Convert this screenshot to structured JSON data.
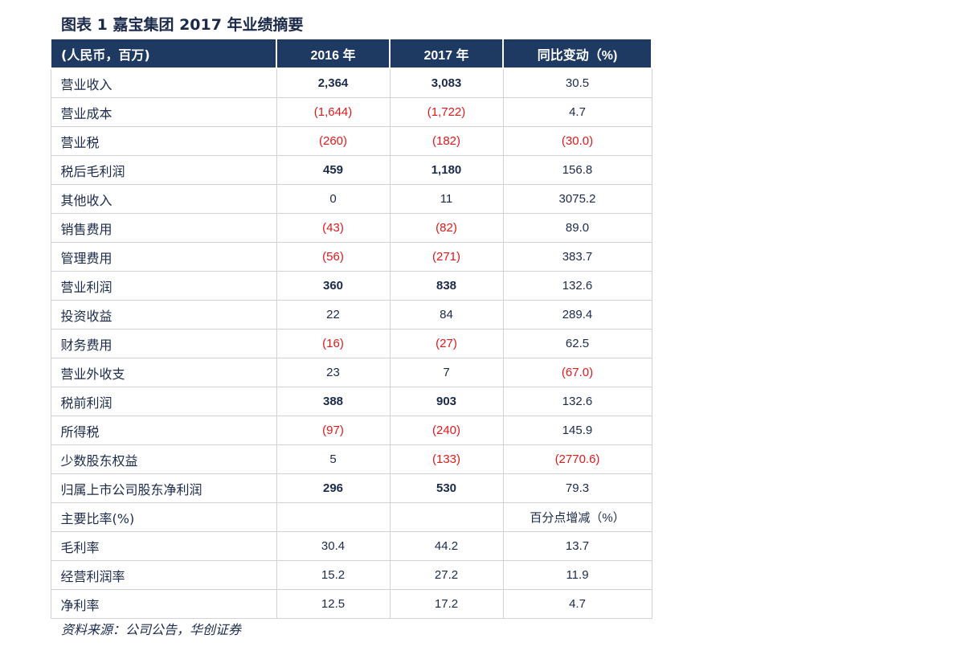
{
  "title": "图表 1 嘉宝集团 2017 年业绩摘要",
  "header": [
    "(人民币，百万)",
    "2016 年",
    "2017 年",
    "同比变动（%)"
  ],
  "rows": [
    {
      "label": "营业收入",
      "y2016": "2,364",
      "y2017": "3,083",
      "change": "30.5",
      "neg2016": false,
      "neg2017": false,
      "negChange": false,
      "bold": true
    },
    {
      "label": "营业成本",
      "y2016": "(1,644)",
      "y2017": "(1,722)",
      "change": "4.7",
      "neg2016": true,
      "neg2017": true,
      "negChange": false,
      "bold": false
    },
    {
      "label": "营业税",
      "y2016": "(260)",
      "y2017": "(182)",
      "change": "(30.0)",
      "neg2016": true,
      "neg2017": true,
      "negChange": true,
      "bold": false
    },
    {
      "label": "税后毛利润",
      "y2016": "459",
      "y2017": "1,180",
      "change": "156.8",
      "neg2016": false,
      "neg2017": false,
      "negChange": false,
      "bold": true
    },
    {
      "label": "其他收入",
      "y2016": "0",
      "y2017": "11",
      "change": "3075.2",
      "neg2016": false,
      "neg2017": false,
      "negChange": false,
      "bold": false
    },
    {
      "label": "销售费用",
      "y2016": "(43)",
      "y2017": "(82)",
      "change": "89.0",
      "neg2016": true,
      "neg2017": true,
      "negChange": false,
      "bold": false
    },
    {
      "label": "管理费用",
      "y2016": "(56)",
      "y2017": "(271)",
      "change": "383.7",
      "neg2016": true,
      "neg2017": true,
      "negChange": false,
      "bold": false
    },
    {
      "label": "营业利润",
      "y2016": "360",
      "y2017": "838",
      "change": "132.6",
      "neg2016": false,
      "neg2017": false,
      "negChange": false,
      "bold": true
    },
    {
      "label": "投资收益",
      "y2016": "22",
      "y2017": "84",
      "change": "289.4",
      "neg2016": false,
      "neg2017": false,
      "negChange": false,
      "bold": false
    },
    {
      "label": "财务费用",
      "y2016": "(16)",
      "y2017": "(27)",
      "change": "62.5",
      "neg2016": true,
      "neg2017": true,
      "negChange": false,
      "bold": false
    },
    {
      "label": "营业外收支",
      "y2016": "23",
      "y2017": "7",
      "change": "(67.0)",
      "neg2016": false,
      "neg2017": false,
      "negChange": true,
      "bold": false
    },
    {
      "label": "税前利润",
      "y2016": "388",
      "y2017": "903",
      "change": "132.6",
      "neg2016": false,
      "neg2017": false,
      "negChange": false,
      "bold": true
    },
    {
      "label": "所得税",
      "y2016": "(97)",
      "y2017": "(240)",
      "change": "145.9",
      "neg2016": true,
      "neg2017": true,
      "negChange": false,
      "bold": false
    },
    {
      "label": "少数股东权益",
      "y2016": "5",
      "y2017": "(133)",
      "change": "(2770.6)",
      "neg2016": false,
      "neg2017": true,
      "negChange": true,
      "bold": false
    },
    {
      "label": "归属上市公司股东净利润",
      "y2016": "296",
      "y2017": "530",
      "change": "79.3",
      "neg2016": false,
      "neg2017": false,
      "negChange": false,
      "bold": true
    }
  ],
  "ratios_header": {
    "label": "主要比率(%)",
    "change": "百分点增减（%）"
  },
  "ratio_rows": [
    {
      "label": "毛利率",
      "y2016": "30.4",
      "y2017": "44.2",
      "change": "13.7"
    },
    {
      "label": "经营利润率",
      "y2016": "15.2",
      "y2017": "27.2",
      "change": "11.9"
    },
    {
      "label": "净利率",
      "y2016": "12.5",
      "y2017": "17.2",
      "change": "4.7"
    }
  ],
  "source": "资料来源：公司公告，华创证券",
  "colors": {
    "header_bg": "#1e3a63",
    "negative": "#e0191b",
    "text": "#1b2a4a"
  }
}
